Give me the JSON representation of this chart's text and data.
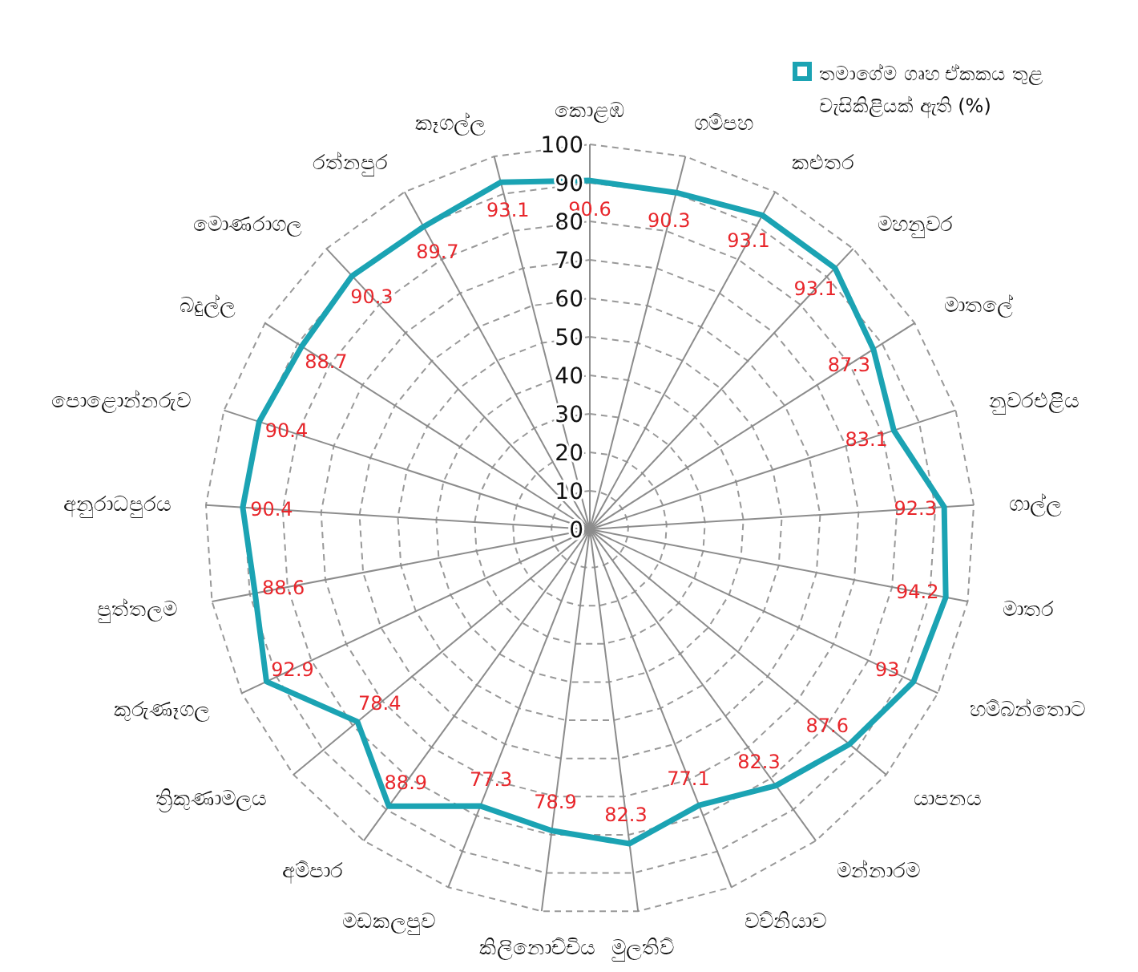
{
  "chart_data": {
    "type": "radar",
    "categories": [
      "කොළඹ",
      "ගම්පහ",
      "කළුතර",
      "මහනුවර",
      "මාතලේ",
      "නුවරඑළිය",
      "ගාල්ල",
      "මාතර",
      "හම්බන්තොට",
      "යාපනය",
      "මන්නාරම",
      "වව්නියාව",
      "මුලතිව්",
      "කිලිනොච්චිය",
      "මඩකලපුව",
      "අම්පාර",
      "ත්‍රිකුණාමලය",
      "කුරුණෑගල",
      "පුත්තලම",
      "අනුරාධපුරය",
      "පොළොන්නරුව",
      "බදුල්ල",
      "මොණරාගල",
      "රත්නපුර",
      "කෑගල්ල"
    ],
    "series": [
      {
        "name": "තමාගේම ගෘහ ඒකකය තුළ වැසිකිළියක් ඇති (%)",
        "color": "#1ba3b3",
        "values": [
          90.6,
          90.3,
          93.1,
          93.1,
          87.3,
          83.1,
          92.3,
          94.2,
          93,
          87.6,
          82.3,
          77.1,
          82.3,
          78.9,
          77.3,
          88.9,
          78.4,
          92.9,
          88.6,
          90.4,
          90.4,
          88.7,
          90.3,
          89.7,
          93.1
        ]
      }
    ],
    "ylim": [
      0,
      100
    ],
    "yticks": [
      0,
      10,
      20,
      30,
      40,
      50,
      60,
      70,
      80,
      90,
      100
    ],
    "grid": true,
    "legend": "top right",
    "data_labels": true
  }
}
